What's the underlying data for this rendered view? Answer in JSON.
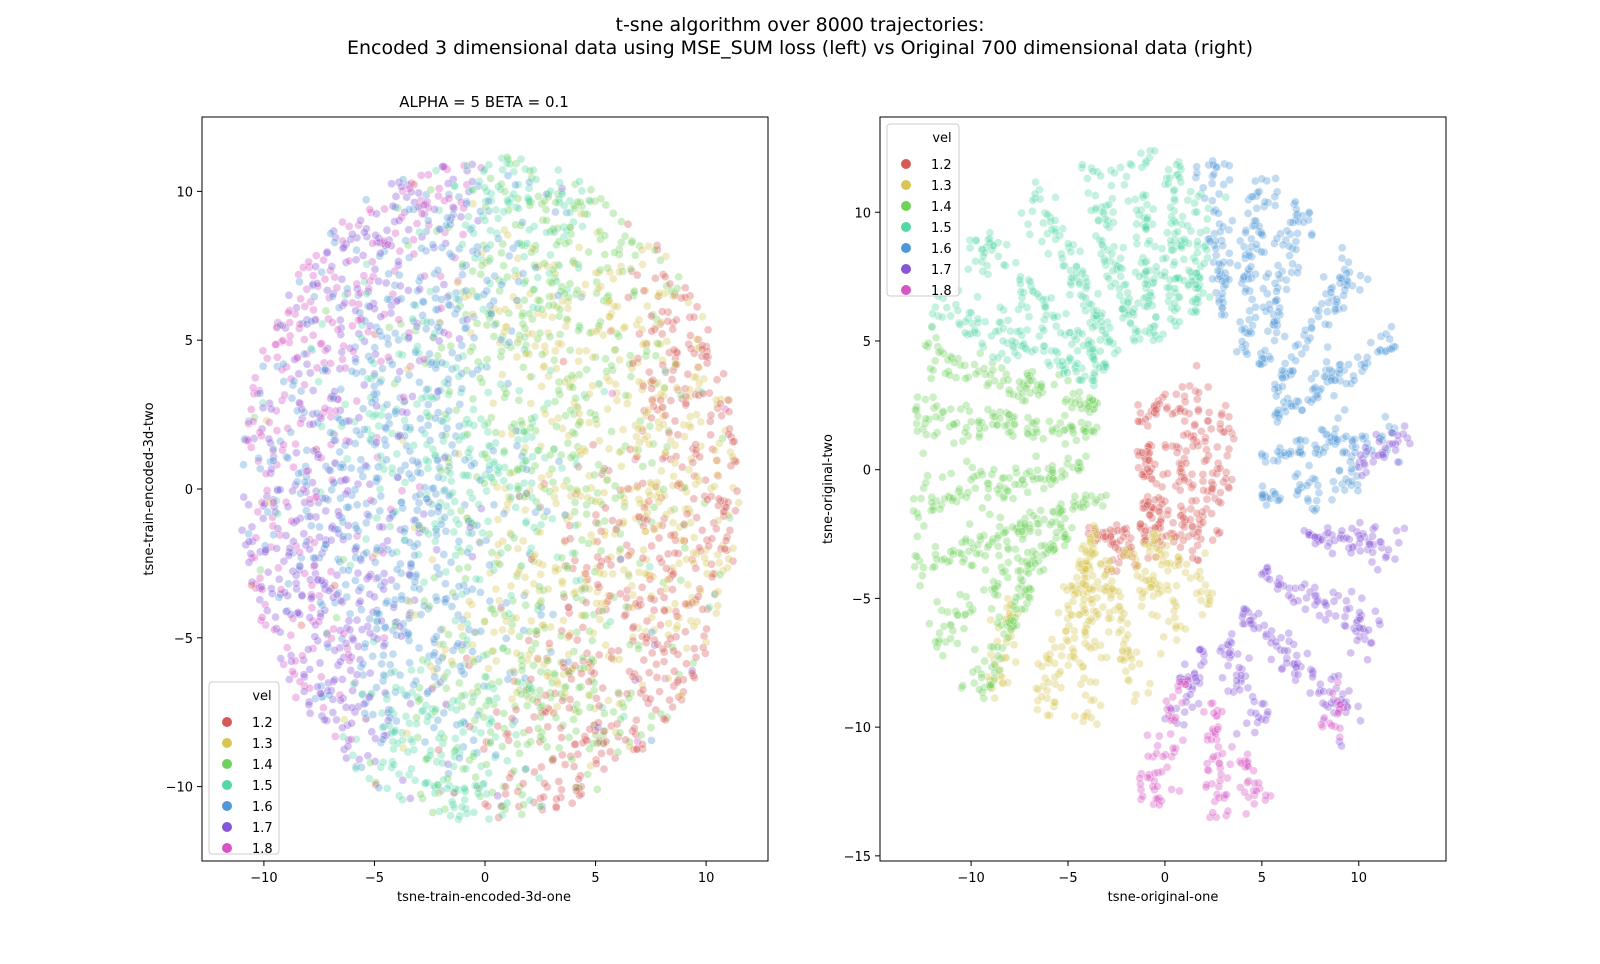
{
  "figure": {
    "title_line1": "t-sne algorithm over 8000 trajectories:",
    "title_line2": "Encoded 3 dimensional data using MSE_SUM loss (left) vs Original 700 dimensional data (right)"
  },
  "legend": {
    "title": "vel",
    "entries": [
      {
        "label": "1.2",
        "color": "#d65a58"
      },
      {
        "label": "1.3",
        "color": "#d8c654"
      },
      {
        "label": "1.4",
        "color": "#6fd25c"
      },
      {
        "label": "1.5",
        "color": "#55d6a5"
      },
      {
        "label": "1.6",
        "color": "#4f97d6"
      },
      {
        "label": "1.7",
        "color": "#8756d8"
      },
      {
        "label": "1.8",
        "color": "#d654c4"
      }
    ]
  },
  "chart_data": [
    {
      "type": "scatter",
      "title": "ALPHA = 5  BETA = 0.1",
      "xlabel": "tsne-train-encoded-3d-one",
      "ylabel": "tsne-train-encoded-3d-two",
      "xlim": [
        -12.8,
        12.8
      ],
      "ylim": [
        -12.5,
        12.5
      ],
      "xticks": [
        -10,
        -5,
        0,
        5,
        10
      ],
      "yticks": [
        -10,
        -5,
        0,
        5,
        10
      ],
      "legend_title": "vel",
      "legend_position": "lower-left",
      "grid": false,
      "point_alpha": 0.35,
      "shape": "ellipse",
      "center": [
        0.2,
        0.0
      ],
      "radii": [
        11.3,
        11.2
      ],
      "series": [
        {
          "name": "1.2",
          "clusters": [
            [
              9.5,
              1.0,
              1.6
            ],
            [
              6.5,
              -4.0,
              1.6
            ],
            [
              9.0,
              5.0,
              1.2
            ],
            [
              3.0,
              -9.0,
              1.2
            ]
          ]
        },
        {
          "name": "1.3",
          "clusters": [
            [
              6.5,
              3.0,
              2.0
            ],
            [
              2.5,
              -3.5,
              1.6
            ],
            [
              8.0,
              -1.0,
              1.6
            ],
            [
              2.0,
              5.0,
              1.2
            ]
          ]
        },
        {
          "name": "1.4",
          "clusters": [
            [
              3.5,
              6.5,
              2.0
            ],
            [
              2.0,
              -6.5,
              1.8
            ],
            [
              1.0,
              3.0,
              1.4
            ],
            [
              5.0,
              0.0,
              1.4
            ]
          ]
        },
        {
          "name": "1.5",
          "clusters": [
            [
              0.5,
              0.5,
              1.8
            ],
            [
              -2.0,
              -8.5,
              1.4
            ],
            [
              1.5,
              9.0,
              1.2
            ],
            [
              -3.0,
              3.5,
              1.4
            ]
          ]
        },
        {
          "name": "1.6",
          "clusters": [
            [
              -3.5,
              4.0,
              2.0
            ],
            [
              -3.0,
              -3.5,
              2.0
            ],
            [
              -1.5,
              7.0,
              1.3
            ],
            [
              -7.0,
              1.0,
              1.5
            ]
          ]
        },
        {
          "name": "1.7",
          "clusters": [
            [
              -7.5,
              -1.5,
              2.0
            ],
            [
              -6.0,
              7.0,
              1.8
            ],
            [
              -8.5,
              -6.0,
              1.6
            ],
            [
              -3.5,
              9.5,
              1.2
            ]
          ]
        },
        {
          "name": "1.8",
          "clusters": [
            [
              -9.5,
              3.0,
              1.6
            ],
            [
              -10.0,
              -5.0,
              1.6
            ],
            [
              -3.0,
              10.0,
              1.0
            ],
            [
              -7.0,
              6.0,
              1.4
            ]
          ]
        }
      ]
    },
    {
      "type": "scatter",
      "xlabel": "tsne-original-one",
      "ylabel": "tsne-original-two",
      "xlim": [
        -14.7,
        14.5
      ],
      "ylim": [
        -15.2,
        13.7
      ],
      "xticks": [
        -10,
        -5,
        0,
        5,
        10
      ],
      "yticks": [
        -15,
        -10,
        -5,
        0,
        5,
        10
      ],
      "legend_title": "vel",
      "legend_position": "upper-left",
      "grid": false,
      "point_alpha": 0.35,
      "shape": "radial-arms",
      "arms": [
        {
          "series": "1.2",
          "from": [
            -1.5,
            2.0
          ],
          "to": [
            2.5,
            3.0
          ]
        },
        {
          "series": "1.2",
          "from": [
            -1.5,
            0.5
          ],
          "to": [
            3.5,
            1.5
          ]
        },
        {
          "series": "1.2",
          "from": [
            -1.5,
            -0.2
          ],
          "to": [
            3.5,
            -0.3
          ]
        },
        {
          "series": "1.2",
          "from": [
            -1.5,
            -1.2
          ],
          "to": [
            3.0,
            -2.0
          ]
        },
        {
          "series": "1.2",
          "from": [
            -4.0,
            -2.5
          ],
          "to": [
            2.0,
            -3.0
          ]
        },
        {
          "series": "1.2",
          "from": [
            -3.0,
            -4.0
          ],
          "to": [
            0.0,
            -2.0
          ]
        },
        {
          "series": "1.3",
          "from": [
            -3.5,
            -2.0
          ],
          "to": [
            -6.5,
            -9.5
          ]
        },
        {
          "series": "1.3",
          "from": [
            -4.0,
            -3.0
          ],
          "to": [
            -4.0,
            -10.0
          ]
        },
        {
          "series": "1.3",
          "from": [
            -3.0,
            -3.5
          ],
          "to": [
            -1.5,
            -9.0
          ]
        },
        {
          "series": "1.3",
          "from": [
            -2.0,
            -3.0
          ],
          "to": [
            1.0,
            -6.5
          ]
        },
        {
          "series": "1.3",
          "from": [
            -1.0,
            -2.5
          ],
          "to": [
            2.5,
            -5.0
          ]
        },
        {
          "series": "1.3",
          "from": [
            -8.0,
            -5.0
          ],
          "to": [
            -8.5,
            -9.0
          ]
        },
        {
          "series": "1.4",
          "from": [
            -3.0,
            -1.0
          ],
          "to": [
            -13.0,
            -4.0
          ]
        },
        {
          "series": "1.4",
          "from": [
            -4.0,
            0.3
          ],
          "to": [
            -13.0,
            -1.5
          ]
        },
        {
          "series": "1.4",
          "from": [
            -3.5,
            1.5
          ],
          "to": [
            -13.0,
            2.0
          ]
        },
        {
          "series": "1.4",
          "from": [
            -3.5,
            2.5
          ],
          "to": [
            -12.5,
            4.5
          ]
        },
        {
          "series": "1.4",
          "from": [
            -5.0,
            -2.5
          ],
          "to": [
            -12.0,
            -6.5
          ]
        },
        {
          "series": "1.4",
          "from": [
            -7.0,
            -4.5
          ],
          "to": [
            -10.0,
            -9.0
          ]
        },
        {
          "series": "1.5",
          "from": [
            -3.5,
            3.5
          ],
          "to": [
            -12.0,
            6.5
          ]
        },
        {
          "series": "1.5",
          "from": [
            -3.0,
            4.0
          ],
          "to": [
            -10.0,
            9.0
          ]
        },
        {
          "series": "1.5",
          "from": [
            -2.5,
            4.5
          ],
          "to": [
            -7.0,
            11.0
          ]
        },
        {
          "series": "1.5",
          "from": [
            -1.5,
            5.0
          ],
          "to": [
            -4.0,
            12.0
          ]
        },
        {
          "series": "1.5",
          "from": [
            -0.5,
            5.0
          ],
          "to": [
            -1.5,
            12.5
          ]
        },
        {
          "series": "1.5",
          "from": [
            0.5,
            5.5
          ],
          "to": [
            0.5,
            12.0
          ]
        },
        {
          "series": "1.5",
          "from": [
            1.5,
            6.0
          ],
          "to": [
            2.0,
            11.0
          ]
        },
        {
          "series": "1.6",
          "from": [
            3.0,
            6.0
          ],
          "to": [
            2.5,
            12.0
          ]
        },
        {
          "series": "1.6",
          "from": [
            4.0,
            4.5
          ],
          "to": [
            5.0,
            11.5
          ]
        },
        {
          "series": "1.6",
          "from": [
            5.0,
            4.0
          ],
          "to": [
            7.0,
            10.5
          ]
        },
        {
          "series": "1.6",
          "from": [
            5.5,
            3.0
          ],
          "to": [
            10.0,
            8.0
          ]
        },
        {
          "series": "1.6",
          "from": [
            5.5,
            2.0
          ],
          "to": [
            12.0,
            5.0
          ]
        },
        {
          "series": "1.6",
          "from": [
            5.0,
            0.5
          ],
          "to": [
            12.0,
            1.5
          ]
        },
        {
          "series": "1.6",
          "from": [
            5.0,
            -1.0
          ],
          "to": [
            10.0,
            -0.5
          ]
        },
        {
          "series": "1.7",
          "from": [
            10.0,
            0.0
          ],
          "to": [
            12.5,
            1.5
          ]
        },
        {
          "series": "1.7",
          "from": [
            7.0,
            -2.5
          ],
          "to": [
            12.5,
            -3.0
          ]
        },
        {
          "series": "1.7",
          "from": [
            5.0,
            -4.0
          ],
          "to": [
            11.0,
            -6.5
          ]
        },
        {
          "series": "1.7",
          "from": [
            4.0,
            -5.5
          ],
          "to": [
            10.0,
            -10.0
          ]
        },
        {
          "series": "1.7",
          "from": [
            3.0,
            -6.5
          ],
          "to": [
            5.0,
            -10.0
          ]
        },
        {
          "series": "1.7",
          "from": [
            2.0,
            -7.0
          ],
          "to": [
            0.5,
            -10.0
          ]
        },
        {
          "series": "1.8",
          "from": [
            1.0,
            -8.0
          ],
          "to": [
            -0.8,
            -13.0
          ]
        },
        {
          "series": "1.8",
          "from": [
            2.5,
            -9.0
          ],
          "to": [
            2.8,
            -13.5
          ]
        },
        {
          "series": "1.8",
          "from": [
            4.0,
            -11.0
          ],
          "to": [
            5.0,
            -13.0
          ]
        },
        {
          "series": "1.8",
          "from": [
            8.0,
            -10.0
          ],
          "to": [
            9.5,
            -9.5
          ]
        }
      ]
    }
  ]
}
